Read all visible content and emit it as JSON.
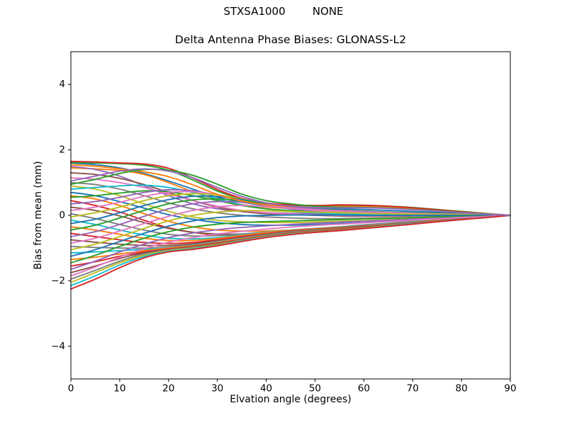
{
  "chart_data": {
    "type": "line",
    "suptitle": "STXSA1000        NONE",
    "title": "Delta Antenna Phase Biases: GLONASS-L2",
    "xlabel": "Elvation angle (degrees)",
    "ylabel": "Bias from mean (mm)",
    "xlim": [
      0,
      90
    ],
    "ylim": [
      -5,
      5
    ],
    "xticks": [
      0,
      10,
      20,
      30,
      40,
      50,
      60,
      70,
      80,
      90
    ],
    "yticks": [
      -4,
      -2,
      0,
      2,
      4
    ],
    "grid": false,
    "legend": "none",
    "axis_color": "#000000",
    "background_color": "#ffffff",
    "x": [
      0,
      5,
      10,
      15,
      20,
      25,
      30,
      35,
      40,
      45,
      50,
      55,
      60,
      65,
      70,
      75,
      80,
      85,
      90
    ],
    "series": [
      {
        "color": "#1f77b4",
        "values": [
          1.6,
          1.55,
          1.45,
          1.28,
          1.05,
          0.8,
          0.55,
          0.4,
          0.3,
          0.25,
          0.22,
          0.2,
          0.18,
          0.15,
          0.12,
          0.09,
          0.06,
          0.03,
          0
        ]
      },
      {
        "color": "#ff7f0e",
        "values": [
          1.45,
          1.42,
          1.37,
          1.25,
          1.0,
          0.72,
          0.48,
          0.33,
          0.25,
          0.22,
          0.25,
          0.28,
          0.27,
          0.24,
          0.2,
          0.15,
          0.1,
          0.05,
          0
        ]
      },
      {
        "color": "#2ca02c",
        "values": [
          1.62,
          1.6,
          1.58,
          1.53,
          1.38,
          1.08,
          0.74,
          0.5,
          0.35,
          0.3,
          0.28,
          0.3,
          0.3,
          0.28,
          0.24,
          0.18,
          0.12,
          0.06,
          0
        ]
      },
      {
        "color": "#d62728",
        "values": [
          1.65,
          1.63,
          1.6,
          1.57,
          1.44,
          1.14,
          0.79,
          0.52,
          0.38,
          0.32,
          0.3,
          0.32,
          0.31,
          0.28,
          0.23,
          0.17,
          0.11,
          0.05,
          0
        ]
      },
      {
        "color": "#9467bd",
        "values": [
          1.5,
          1.4,
          1.2,
          0.9,
          0.6,
          0.35,
          0.2,
          0.12,
          0.08,
          0.06,
          0.05,
          0.05,
          0.05,
          0.04,
          0.04,
          0.03,
          0.02,
          0.01,
          0
        ]
      },
      {
        "color": "#8c564b",
        "values": [
          1.3,
          1.25,
          1.13,
          0.94,
          0.7,
          0.45,
          0.25,
          0.12,
          0.05,
          0.02,
          0.0,
          -0.02,
          -0.03,
          -0.03,
          -0.02,
          -0.02,
          -0.01,
          0.0,
          0
        ]
      },
      {
        "color": "#e377c2",
        "values": [
          1.15,
          1.1,
          1.0,
          0.85,
          0.65,
          0.45,
          0.28,
          0.15,
          0.08,
          0.04,
          0.02,
          0.0,
          -0.01,
          -0.01,
          -0.01,
          0.0,
          0.0,
          0.0,
          0
        ]
      },
      {
        "color": "#7f7f7f",
        "values": [
          1.0,
          0.94,
          0.8,
          0.6,
          0.38,
          0.2,
          0.08,
          0.0,
          -0.05,
          -0.08,
          -0.1,
          -0.1,
          -0.09,
          -0.08,
          -0.06,
          -0.05,
          -0.03,
          -0.01,
          0
        ]
      },
      {
        "color": "#bcbd22",
        "values": [
          0.9,
          0.8,
          0.6,
          0.35,
          0.12,
          -0.05,
          -0.15,
          -0.2,
          -0.22,
          -0.22,
          -0.2,
          -0.18,
          -0.16,
          -0.13,
          -0.1,
          -0.08,
          -0.05,
          -0.02,
          0
        ]
      },
      {
        "color": "#17becf",
        "values": [
          0.8,
          0.85,
          0.9,
          0.92,
          0.85,
          0.7,
          0.5,
          0.32,
          0.2,
          0.12,
          0.08,
          0.05,
          0.04,
          0.03,
          0.02,
          0.02,
          0.01,
          0.0,
          0
        ]
      },
      {
        "color": "#1f77b4",
        "values": [
          0.7,
          0.6,
          0.42,
          0.22,
          0.02,
          -0.12,
          -0.22,
          -0.28,
          -0.3,
          -0.3,
          -0.28,
          -0.25,
          -0.22,
          -0.18,
          -0.14,
          -0.1,
          -0.06,
          -0.03,
          0
        ]
      },
      {
        "color": "#ff7f0e",
        "values": [
          0.6,
          0.5,
          0.3,
          0.05,
          -0.18,
          -0.35,
          -0.45,
          -0.48,
          -0.48,
          -0.45,
          -0.42,
          -0.38,
          -0.33,
          -0.27,
          -0.21,
          -0.15,
          -0.1,
          -0.05,
          0
        ]
      },
      {
        "color": "#2ca02c",
        "values": [
          0.55,
          0.6,
          0.68,
          0.75,
          0.72,
          0.6,
          0.45,
          0.3,
          0.2,
          0.15,
          0.12,
          0.1,
          0.09,
          0.08,
          0.06,
          0.05,
          0.03,
          0.01,
          0
        ]
      },
      {
        "color": "#d62728",
        "values": [
          0.45,
          0.3,
          0.1,
          -0.15,
          -0.38,
          -0.52,
          -0.6,
          -0.62,
          -0.6,
          -0.56,
          -0.52,
          -0.47,
          -0.4,
          -0.33,
          -0.26,
          -0.19,
          -0.12,
          -0.06,
          0
        ]
      },
      {
        "color": "#9467bd",
        "values": [
          0.35,
          0.42,
          0.55,
          0.7,
          0.78,
          0.75,
          0.62,
          0.45,
          0.3,
          0.2,
          0.14,
          0.1,
          0.08,
          0.06,
          0.05,
          0.03,
          0.02,
          0.01,
          0
        ]
      },
      {
        "color": "#8c564b",
        "values": [
          0.25,
          0.15,
          -0.02,
          -0.22,
          -0.4,
          -0.52,
          -0.57,
          -0.57,
          -0.54,
          -0.5,
          -0.45,
          -0.4,
          -0.34,
          -0.28,
          -0.22,
          -0.16,
          -0.1,
          -0.05,
          0
        ]
      },
      {
        "color": "#e377c2",
        "values": [
          0.15,
          0.25,
          0.4,
          0.58,
          0.7,
          0.72,
          0.63,
          0.48,
          0.33,
          0.22,
          0.15,
          0.1,
          0.07,
          0.05,
          0.04,
          0.03,
          0.02,
          0.01,
          0
        ]
      },
      {
        "color": "#7f7f7f",
        "values": [
          0.05,
          -0.1,
          -0.28,
          -0.45,
          -0.58,
          -0.63,
          -0.62,
          -0.57,
          -0.51,
          -0.45,
          -0.4,
          -0.35,
          -0.29,
          -0.24,
          -0.18,
          -0.13,
          -0.08,
          -0.04,
          0
        ]
      },
      {
        "color": "#bcbd22",
        "values": [
          -0.05,
          0.08,
          0.25,
          0.45,
          0.6,
          0.66,
          0.62,
          0.5,
          0.36,
          0.25,
          0.17,
          0.12,
          0.09,
          0.07,
          0.05,
          0.04,
          0.02,
          0.01,
          0
        ]
      },
      {
        "color": "#17becf",
        "values": [
          -0.15,
          -0.28,
          -0.45,
          -0.6,
          -0.7,
          -0.72,
          -0.68,
          -0.6,
          -0.52,
          -0.45,
          -0.4,
          -0.36,
          -0.31,
          -0.26,
          -0.2,
          -0.15,
          -0.09,
          -0.04,
          0
        ]
      },
      {
        "color": "#1f77b4",
        "values": [
          -0.25,
          -0.12,
          0.08,
          0.3,
          0.48,
          0.58,
          0.57,
          0.48,
          0.36,
          0.26,
          0.19,
          0.14,
          0.11,
          0.08,
          0.06,
          0.04,
          0.03,
          0.01,
          0
        ]
      },
      {
        "color": "#ff7f0e",
        "values": [
          -0.35,
          -0.45,
          -0.58,
          -0.7,
          -0.77,
          -0.77,
          -0.71,
          -0.62,
          -0.53,
          -0.46,
          -0.41,
          -0.37,
          -0.32,
          -0.27,
          -0.21,
          -0.15,
          -0.1,
          -0.05,
          0
        ]
      },
      {
        "color": "#2ca02c",
        "values": [
          -0.45,
          -0.3,
          -0.08,
          0.15,
          0.35,
          0.47,
          0.5,
          0.45,
          0.35,
          0.26,
          0.2,
          0.16,
          0.13,
          0.1,
          0.08,
          0.06,
          0.04,
          0.02,
          0
        ]
      },
      {
        "color": "#d62728",
        "values": [
          -0.55,
          -0.65,
          -0.75,
          -0.83,
          -0.86,
          -0.83,
          -0.75,
          -0.65,
          -0.56,
          -0.48,
          -0.43,
          -0.38,
          -0.33,
          -0.28,
          -0.22,
          -0.16,
          -0.1,
          -0.05,
          0
        ]
      },
      {
        "color": "#9467bd",
        "values": [
          -0.65,
          -0.5,
          -0.28,
          -0.03,
          0.2,
          0.35,
          0.42,
          0.4,
          0.33,
          0.25,
          0.19,
          0.15,
          0.12,
          0.09,
          0.07,
          0.05,
          0.03,
          0.01,
          0
        ]
      },
      {
        "color": "#8c564b",
        "values": [
          -0.75,
          -0.82,
          -0.88,
          -0.92,
          -0.92,
          -0.87,
          -0.78,
          -0.68,
          -0.58,
          -0.5,
          -0.44,
          -0.39,
          -0.34,
          -0.28,
          -0.22,
          -0.17,
          -0.11,
          -0.05,
          0
        ]
      },
      {
        "color": "#e377c2",
        "values": [
          -0.85,
          -0.7,
          -0.48,
          -0.25,
          -0.03,
          0.15,
          0.26,
          0.3,
          0.27,
          0.22,
          0.17,
          0.13,
          0.1,
          0.08,
          0.06,
          0.04,
          0.03,
          0.01,
          0
        ]
      },
      {
        "color": "#7f7f7f",
        "values": [
          -0.95,
          -0.98,
          -1.0,
          -1.0,
          -0.97,
          -0.9,
          -0.8,
          -0.69,
          -0.59,
          -0.51,
          -0.45,
          -0.4,
          -0.35,
          -0.29,
          -0.23,
          -0.17,
          -0.11,
          -0.05,
          0
        ]
      },
      {
        "color": "#bcbd22",
        "values": [
          -1.05,
          -0.88,
          -0.65,
          -0.4,
          -0.17,
          0.0,
          0.1,
          0.14,
          0.14,
          0.12,
          0.1,
          0.08,
          0.06,
          0.05,
          0.04,
          0.03,
          0.02,
          0.01,
          0
        ]
      },
      {
        "color": "#17becf",
        "values": [
          -1.15,
          -1.12,
          -1.08,
          -1.04,
          -0.99,
          -0.92,
          -0.82,
          -0.71,
          -0.61,
          -0.52,
          -0.46,
          -0.41,
          -0.35,
          -0.3,
          -0.23,
          -0.17,
          -0.11,
          -0.06,
          0
        ]
      },
      {
        "color": "#1f77b4",
        "values": [
          -1.25,
          -1.05,
          -0.8,
          -0.55,
          -0.33,
          -0.17,
          -0.07,
          -0.02,
          0.0,
          0.01,
          0.01,
          0.01,
          0.0,
          0.0,
          0.0,
          0.0,
          0.0,
          0.0,
          0
        ]
      },
      {
        "color": "#ff7f0e",
        "values": [
          -1.35,
          -1.28,
          -1.18,
          -1.08,
          -1.0,
          -0.93,
          -0.83,
          -0.72,
          -0.62,
          -0.53,
          -0.47,
          -0.41,
          -0.36,
          -0.3,
          -0.24,
          -0.18,
          -0.12,
          -0.06,
          0
        ]
      },
      {
        "color": "#2ca02c",
        "values": [
          -1.45,
          -1.22,
          -0.95,
          -0.7,
          -0.5,
          -0.36,
          -0.27,
          -0.22,
          -0.19,
          -0.17,
          -0.15,
          -0.13,
          -0.11,
          -0.09,
          -0.07,
          -0.05,
          -0.03,
          -0.02,
          0
        ]
      },
      {
        "color": "#d62728",
        "values": [
          -1.55,
          -1.42,
          -1.25,
          -1.12,
          -1.03,
          -0.95,
          -0.85,
          -0.74,
          -0.63,
          -0.54,
          -0.48,
          -0.42,
          -0.36,
          -0.31,
          -0.24,
          -0.18,
          -0.12,
          -0.06,
          0
        ]
      },
      {
        "color": "#9467bd",
        "values": [
          -1.65,
          -1.4,
          -1.12,
          -0.88,
          -0.68,
          -0.54,
          -0.44,
          -0.37,
          -0.32,
          -0.28,
          -0.24,
          -0.21,
          -0.18,
          -0.15,
          -0.12,
          -0.09,
          -0.06,
          -0.03,
          0
        ]
      },
      {
        "color": "#8c564b",
        "values": [
          -1.75,
          -1.55,
          -1.32,
          -1.15,
          -1.05,
          -0.97,
          -0.87,
          -0.75,
          -0.64,
          -0.55,
          -0.49,
          -0.43,
          -0.37,
          -0.31,
          -0.25,
          -0.19,
          -0.12,
          -0.06,
          0
        ]
      },
      {
        "color": "#e377c2",
        "values": [
          -1.85,
          -1.58,
          -1.28,
          -1.02,
          -0.82,
          -0.68,
          -0.57,
          -0.49,
          -0.42,
          -0.36,
          -0.31,
          -0.27,
          -0.23,
          -0.19,
          -0.15,
          -0.11,
          -0.07,
          -0.04,
          0
        ]
      },
      {
        "color": "#7f7f7f",
        "values": [
          -1.95,
          -1.68,
          -1.4,
          -1.18,
          -1.06,
          -0.98,
          -0.88,
          -0.76,
          -0.65,
          -0.56,
          -0.5,
          -0.44,
          -0.38,
          -0.32,
          -0.25,
          -0.19,
          -0.13,
          -0.06,
          0
        ]
      },
      {
        "color": "#bcbd22",
        "values": [
          -2.05,
          -1.75,
          -1.45,
          -1.22,
          -1.08,
          -1.0,
          -0.9,
          -0.78,
          -0.66,
          -0.57,
          -0.51,
          -0.45,
          -0.39,
          -0.32,
          -0.26,
          -0.19,
          -0.13,
          -0.07,
          0
        ]
      },
      {
        "color": "#17becf",
        "values": [
          -2.15,
          -1.85,
          -1.52,
          -1.26,
          -1.1,
          -1.02,
          -0.92,
          -0.79,
          -0.67,
          -0.58,
          -0.52,
          -0.46,
          -0.4,
          -0.33,
          -0.26,
          -0.2,
          -0.13,
          -0.07,
          0
        ]
      },
      {
        "color": "#d62728",
        "values": [
          -2.25,
          -1.95,
          -1.6,
          -1.3,
          -1.12,
          -1.04,
          -0.93,
          -0.8,
          -0.68,
          -0.59,
          -0.52,
          -0.46,
          -0.4,
          -0.34,
          -0.27,
          -0.2,
          -0.13,
          -0.07,
          0
        ]
      },
      {
        "color": "#ff7f0e",
        "values": [
          1.55,
          1.5,
          1.42,
          1.33,
          1.18,
          0.93,
          0.64,
          0.44,
          0.32,
          0.27,
          0.26,
          0.27,
          0.26,
          0.23,
          0.19,
          0.14,
          0.09,
          0.05,
          0
        ]
      },
      {
        "color": "#2ca02c",
        "values": [
          0.95,
          1.1,
          1.28,
          1.4,
          1.38,
          1.22,
          0.95,
          0.65,
          0.45,
          0.35,
          0.28,
          0.25,
          0.24,
          0.22,
          0.18,
          0.14,
          0.09,
          0.04,
          0
        ]
      },
      {
        "color": "#9467bd",
        "values": [
          1.05,
          1.2,
          1.35,
          1.42,
          1.35,
          1.15,
          0.85,
          0.58,
          0.38,
          0.28,
          0.24,
          0.23,
          0.23,
          0.21,
          0.17,
          0.13,
          0.08,
          0.04,
          0
        ]
      }
    ]
  }
}
